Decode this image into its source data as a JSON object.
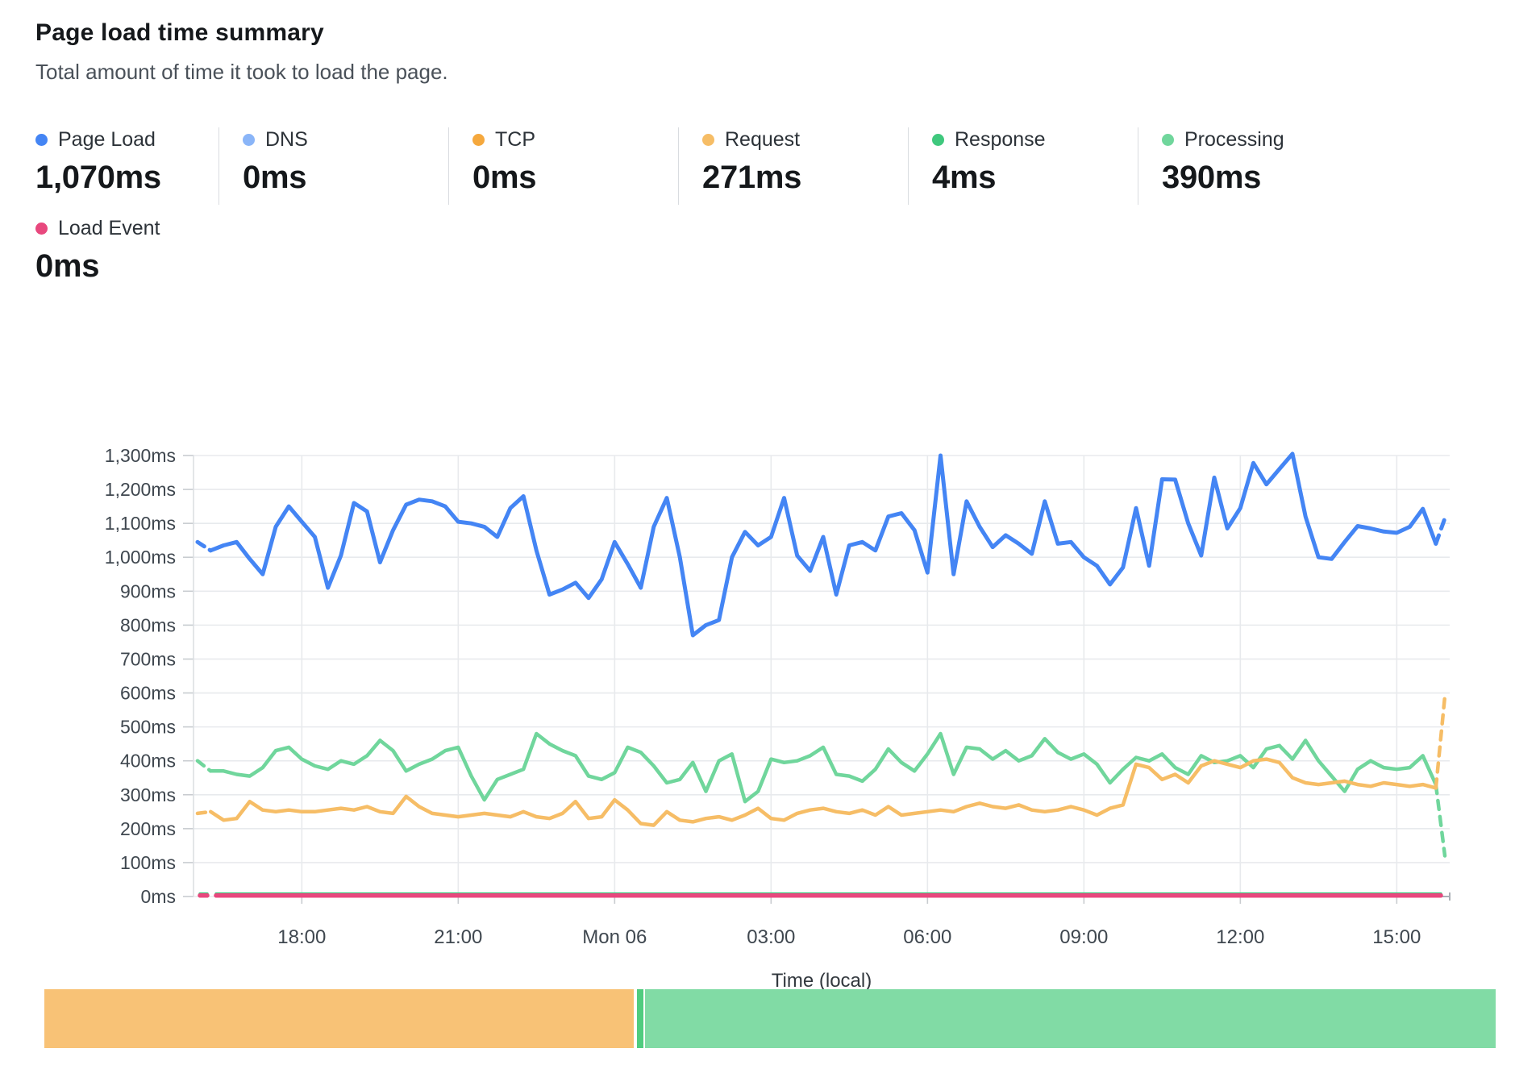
{
  "header": {
    "title": "Page load time summary",
    "subtitle": "Total amount of time it took to load the page."
  },
  "stats": [
    {
      "id": "page-load",
      "label": "Page Load",
      "value": "1,070ms",
      "color": "#4485f4"
    },
    {
      "id": "dns",
      "label": "DNS",
      "value": "0ms",
      "color": "#8ab5f8"
    },
    {
      "id": "tcp",
      "label": "TCP",
      "value": "0ms",
      "color": "#f5a83d"
    },
    {
      "id": "request",
      "label": "Request",
      "value": "271ms",
      "color": "#f6bd66"
    },
    {
      "id": "response",
      "label": "Response",
      "value": "4ms",
      "color": "#3fc87d"
    },
    {
      "id": "processing",
      "label": "Processing",
      "value": "390ms",
      "color": "#70d69c"
    }
  ],
  "load_event": {
    "id": "load-event",
    "label": "Load Event",
    "value": "0ms",
    "color": "#e8487e"
  },
  "chart_data": {
    "type": "line",
    "title": "Page load time summary",
    "xlabel": "Time (local)",
    "ylabel": "",
    "unit": "ms",
    "ylim": [
      0,
      1300
    ],
    "grid": true,
    "y_ticks": [
      "0ms",
      "100ms",
      "200ms",
      "300ms",
      "400ms",
      "500ms",
      "600ms",
      "700ms",
      "800ms",
      "900ms",
      "1,000ms",
      "1,100ms",
      "1,200ms",
      "1,300ms"
    ],
    "x_ticks": [
      {
        "label": "18:00",
        "hour": 18
      },
      {
        "label": "21:00",
        "hour": 21
      },
      {
        "label": "Mon 06",
        "hour": 24
      },
      {
        "label": "03:00",
        "hour": 27
      },
      {
        "label": "06:00",
        "hour": 30
      },
      {
        "label": "09:00",
        "hour": 33
      },
      {
        "label": "12:00",
        "hour": 36
      },
      {
        "label": "15:00",
        "hour": 39
      }
    ],
    "x_start_hour": 16,
    "x_step_hours": 0.25,
    "series": [
      {
        "name": "DNS",
        "color": "#8ab5f8",
        "width": 3,
        "constant": 0
      },
      {
        "name": "TCP",
        "color": "#f5a83d",
        "width": 3,
        "constant": 0
      },
      {
        "name": "Response",
        "color": "#3fc87d",
        "width": 3.5,
        "constant": 8
      },
      {
        "name": "Load Event",
        "color": "#e8487e",
        "width": 5.5,
        "constant": 3
      },
      {
        "name": "Processing",
        "color": "#70d69c",
        "width": 4.5,
        "start_dash": true,
        "end_dash_value": 120,
        "values": [
          400,
          370,
          370,
          360,
          355,
          380,
          430,
          440,
          405,
          385,
          375,
          400,
          390,
          415,
          460,
          430,
          370,
          390,
          405,
          430,
          440,
          355,
          285,
          345,
          360,
          375,
          480,
          450,
          430,
          415,
          355,
          345,
          365,
          440,
          425,
          385,
          335,
          345,
          395,
          310,
          400,
          420,
          280,
          310,
          405,
          395,
          400,
          415,
          440,
          360,
          355,
          340,
          375,
          435,
          395,
          370,
          420,
          480,
          360,
          440,
          435,
          405,
          430,
          400,
          415,
          465,
          425,
          405,
          420,
          390,
          335,
          375,
          410,
          400,
          420,
          380,
          360,
          415,
          395,
          400,
          415,
          380,
          435,
          445,
          405,
          460,
          400,
          355,
          310,
          375,
          400,
          380,
          375,
          380,
          415,
          330
        ]
      },
      {
        "name": "Request",
        "color": "#f6bd66",
        "width": 4.5,
        "start_dash": true,
        "end_dash_value": 590,
        "values": [
          245,
          250,
          225,
          230,
          280,
          255,
          250,
          255,
          250,
          250,
          255,
          260,
          255,
          265,
          250,
          245,
          295,
          265,
          245,
          240,
          235,
          240,
          245,
          240,
          235,
          250,
          235,
          230,
          245,
          280,
          230,
          235,
          285,
          255,
          215,
          210,
          250,
          225,
          220,
          230,
          235,
          225,
          240,
          260,
          230,
          225,
          245,
          255,
          260,
          250,
          245,
          255,
          240,
          265,
          240,
          245,
          250,
          255,
          250,
          265,
          275,
          265,
          260,
          270,
          255,
          250,
          255,
          265,
          255,
          240,
          260,
          270,
          390,
          380,
          345,
          360,
          335,
          385,
          400,
          390,
          380,
          400,
          405,
          395,
          350,
          335,
          330,
          335,
          340,
          330,
          325,
          335,
          330,
          325,
          330,
          320
        ]
      },
      {
        "name": "Page Load",
        "color": "#4485f4",
        "width": 5,
        "start_dash": true,
        "end_dash_value": 1115,
        "values": [
          1045,
          1020,
          1035,
          1045,
          995,
          950,
          1090,
          1150,
          1105,
          1060,
          910,
          1005,
          1160,
          1135,
          985,
          1080,
          1155,
          1170,
          1165,
          1150,
          1105,
          1100,
          1090,
          1060,
          1145,
          1180,
          1020,
          890,
          905,
          925,
          880,
          935,
          1045,
          980,
          910,
          1090,
          1175,
          1000,
          770,
          800,
          815,
          1000,
          1075,
          1035,
          1060,
          1175,
          1005,
          960,
          1060,
          890,
          1035,
          1045,
          1020,
          1120,
          1130,
          1080,
          955,
          1300,
          950,
          1165,
          1090,
          1030,
          1065,
          1040,
          1010,
          1165,
          1040,
          1045,
          1000,
          975,
          920,
          970,
          1145,
          975,
          1230,
          1229,
          1100,
          1005,
          1235,
          1085,
          1145,
          1278,
          1215,
          1260,
          1305,
          1120,
          1000,
          995,
          1045,
          1092,
          1085,
          1076,
          1072,
          1090,
          1143,
          1040
        ]
      }
    ]
  },
  "bottom_bar": {
    "segments": [
      {
        "name": "request-share",
        "color": "#f8c276",
        "pct": 40.6
      },
      {
        "name": "response-share",
        "color": "#50cc7f",
        "pct": 0.45
      },
      {
        "name": "processing-share",
        "color": "#81dba5",
        "pct": 58.6
      }
    ]
  },
  "style": {
    "grid_color": "#e8eaed",
    "axis_line_color": "#dcdfe3",
    "tick_color": "#c8ccd0",
    "axis_text_color": "#3f474f",
    "end_cap_color": "#aab0b6"
  }
}
